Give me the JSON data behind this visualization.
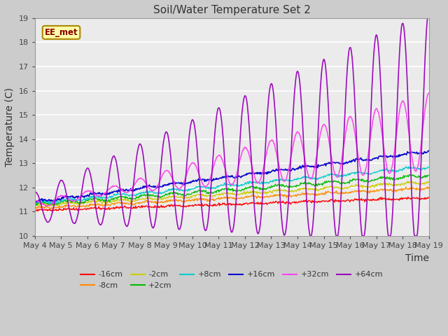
{
  "title": "Soil/Water Temperature Set 2",
  "xlabel": "Time",
  "ylabel": "Temperature (C)",
  "ylim": [
    10.0,
    19.0
  ],
  "yticks": [
    10.0,
    11.0,
    12.0,
    13.0,
    14.0,
    15.0,
    16.0,
    17.0,
    18.0,
    19.0
  ],
  "xtick_labels": [
    "May 4",
    "May 5",
    "May 6",
    "May 7",
    "May 8",
    "May 9",
    "May 10",
    "May 11",
    "May 12",
    "May 13",
    "May 14",
    "May 15",
    "May 16",
    "May 17",
    "May 18",
    "May 19"
  ],
  "series_order": [
    "-16cm",
    "-8cm",
    "-2cm",
    "+2cm",
    "+8cm",
    "+16cm",
    "+32cm",
    "+64cm"
  ],
  "series": {
    "-16cm": {
      "color": "#FF0000",
      "lw": 1.0
    },
    "-8cm": {
      "color": "#FF8C00",
      "lw": 1.0
    },
    "-2cm": {
      "color": "#CCCC00",
      "lw": 1.0
    },
    "+2cm": {
      "color": "#00BB00",
      "lw": 1.0
    },
    "+8cm": {
      "color": "#00CCCC",
      "lw": 1.0
    },
    "+16cm": {
      "color": "#0000CC",
      "lw": 1.2
    },
    "+32cm": {
      "color": "#FF44EE",
      "lw": 1.2
    },
    "+64cm": {
      "color": "#9900BB",
      "lw": 1.2
    }
  },
  "legend_label": "EE_met",
  "legend_row1": [
    "-16cm",
    "-8cm",
    "-2cm",
    "+2cm",
    "+8cm",
    "+16cm"
  ],
  "legend_row2": [
    "+32cm",
    "+64cm"
  ],
  "bg_color": "#F0F0F0",
  "plot_bg_color": "#EBEBEB"
}
